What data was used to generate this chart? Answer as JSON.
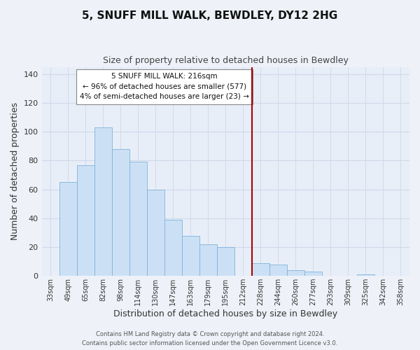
{
  "title": "5, SNUFF MILL WALK, BEWDLEY, DY12 2HG",
  "subtitle": "Size of property relative to detached houses in Bewdley",
  "xlabel": "Distribution of detached houses by size in Bewdley",
  "ylabel": "Number of detached properties",
  "bar_labels": [
    "33sqm",
    "49sqm",
    "65sqm",
    "82sqm",
    "98sqm",
    "114sqm",
    "130sqm",
    "147sqm",
    "163sqm",
    "179sqm",
    "195sqm",
    "212sqm",
    "228sqm",
    "244sqm",
    "260sqm",
    "277sqm",
    "293sqm",
    "309sqm",
    "325sqm",
    "342sqm",
    "358sqm"
  ],
  "bar_values": [
    0,
    65,
    77,
    103,
    88,
    79,
    60,
    39,
    28,
    22,
    20,
    0,
    9,
    8,
    4,
    3,
    0,
    0,
    1,
    0,
    0
  ],
  "bar_color": "#cce0f5",
  "bar_edge_color": "#7eb3d8",
  "marker_index": 12,
  "marker_color": "#aa0000",
  "annotation_title": "5 SNUFF MILL WALK: 216sqm",
  "annotation_line1": "← 96% of detached houses are smaller (577)",
  "annotation_line2": "4% of semi-detached houses are larger (23) →",
  "ylim": [
    0,
    145
  ],
  "yticks": [
    0,
    20,
    40,
    60,
    80,
    100,
    120,
    140
  ],
  "footer1": "Contains HM Land Registry data © Crown copyright and database right 2024.",
  "footer2": "Contains public sector information licensed under the Open Government Licence v3.0.",
  "bg_color": "#eef2f8",
  "grid_color": "#d0d8e8",
  "plot_bg_color": "#e8eef8"
}
